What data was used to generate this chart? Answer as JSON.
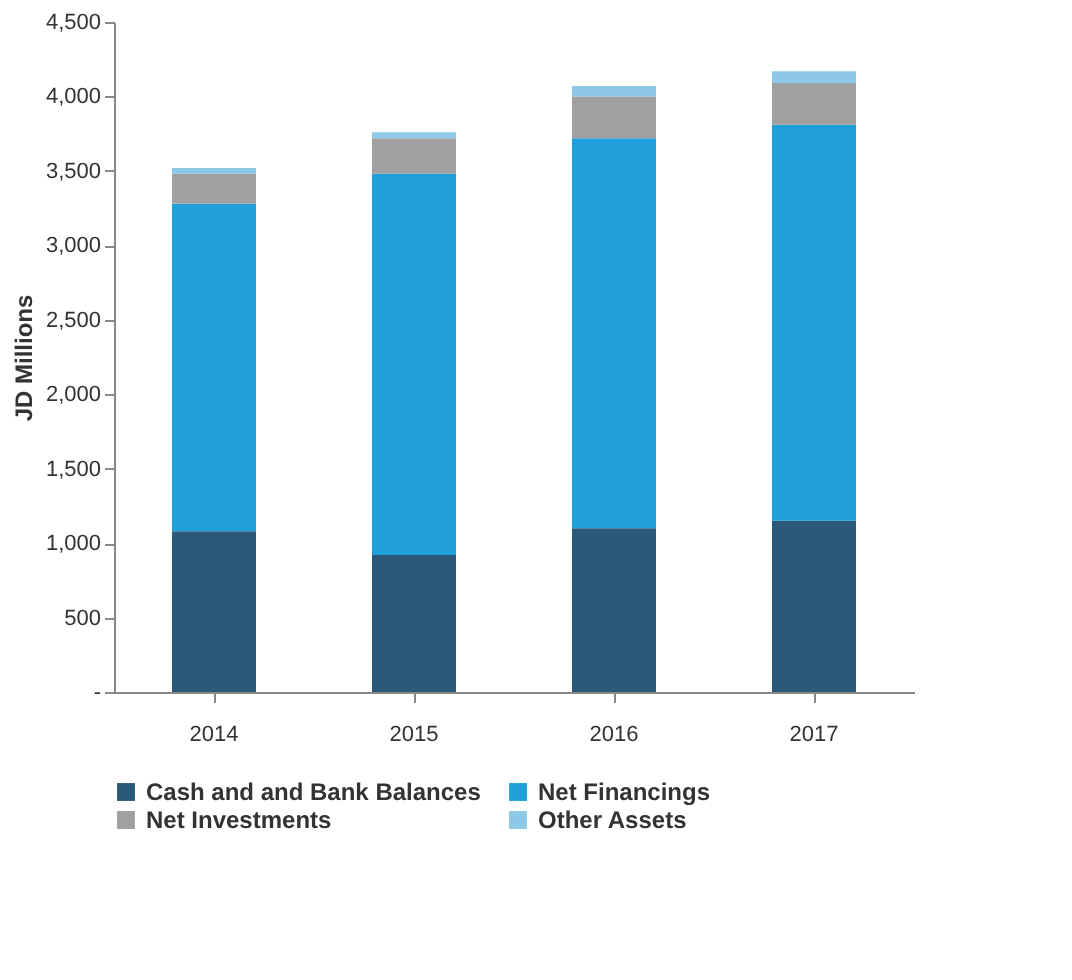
{
  "chart_data": {
    "type": "bar",
    "stacked": true,
    "ylabel": "JD Millions",
    "categories": [
      "2014",
      "2015",
      "2016",
      "2017"
    ],
    "series": [
      {
        "name": "Cash and and Bank Balances",
        "color": "#2b5a78",
        "values": [
          1080,
          920,
          1100,
          1150
        ]
      },
      {
        "name": "Net Financings",
        "color": "#1fa0db",
        "values": [
          2200,
          2560,
          2620,
          2660
        ]
      },
      {
        "name": "Net Investments",
        "color": "#a0a0a0",
        "values": [
          200,
          240,
          280,
          280
        ]
      },
      {
        "name": "Other Assets",
        "color": "#8ec8e8",
        "values": [
          40,
          40,
          70,
          80
        ]
      }
    ],
    "ylim": [
      0,
      4500
    ],
    "yticks": [
      {
        "value": 0,
        "label": "-"
      },
      500,
      {
        "value": 1000,
        "label": "1,000"
      },
      {
        "value": 1500,
        "label": "1,500"
      },
      {
        "value": 2000,
        "label": "2,000"
      },
      {
        "value": 2500,
        "label": "2,500"
      },
      {
        "value": 3000,
        "label": "3,000"
      },
      {
        "value": 3500,
        "label": "3,500"
      },
      {
        "value": 4000,
        "label": "4,000"
      },
      {
        "value": 4500,
        "label": "4,500"
      }
    ],
    "grid": false,
    "legend": "bottom"
  }
}
